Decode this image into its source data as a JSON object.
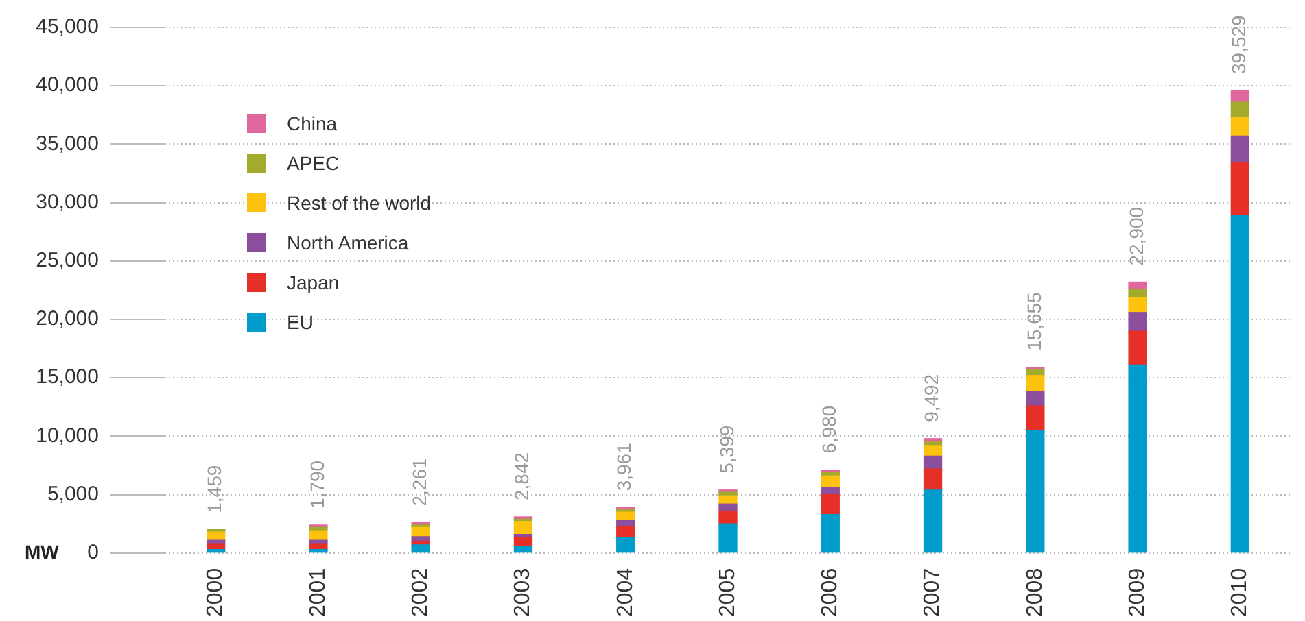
{
  "chart_data": {
    "type": "bar",
    "stacked": true,
    "ylabel": "MW",
    "categories": [
      "2000",
      "2001",
      "2002",
      "2003",
      "2004",
      "2005",
      "2006",
      "2007",
      "2008",
      "2009",
      "2010"
    ],
    "series": [
      {
        "name": "EU",
        "color": "#009ccc",
        "values": [
          300,
          300,
          700,
          600,
          1300,
          2500,
          3300,
          5400,
          10500,
          16100,
          28900
        ]
      },
      {
        "name": "Japan",
        "color": "#e63027",
        "values": [
          500,
          500,
          300,
          700,
          1000,
          1100,
          1700,
          1800,
          2100,
          2900,
          4500
        ]
      },
      {
        "name": "North America",
        "color": "#8b4f9e",
        "values": [
          300,
          300,
          400,
          300,
          500,
          600,
          600,
          1100,
          1200,
          1600,
          2300
        ]
      },
      {
        "name": "Rest of the world",
        "color": "#fdc20e",
        "values": [
          700,
          800,
          800,
          1100,
          700,
          700,
          1000,
          900,
          1400,
          1300,
          1600
        ]
      },
      {
        "name": "APEC",
        "color": "#a3ab2c",
        "values": [
          200,
          300,
          200,
          200,
          200,
          300,
          300,
          300,
          500,
          700,
          1300
        ]
      },
      {
        "name": "China",
        "color": "#e0679e",
        "values": [
          0,
          200,
          200,
          200,
          200,
          200,
          200,
          300,
          200,
          600,
          1000
        ]
      }
    ],
    "annotations": [
      "1,459",
      "1,790",
      "2,261",
      "2,842",
      "3,961",
      "5,399",
      "6,980",
      "9,492",
      "15,655",
      "22,900",
      "39,529"
    ],
    "ylim": [
      0,
      45000
    ],
    "yticks": [
      {
        "value": 0,
        "label": "0"
      },
      {
        "value": 5000,
        "label": "5,000"
      },
      {
        "value": 10000,
        "label": "10,000"
      },
      {
        "value": 15000,
        "label": "15,000"
      },
      {
        "value": 20000,
        "label": "20,000"
      },
      {
        "value": 25000,
        "label": "25,000"
      },
      {
        "value": 30000,
        "label": "30,000"
      },
      {
        "value": 35000,
        "label": "35,000"
      },
      {
        "value": 40000,
        "label": "40,000"
      },
      {
        "value": 45000,
        "label": "45,000"
      }
    ],
    "grid": "y",
    "legend": "top left"
  }
}
